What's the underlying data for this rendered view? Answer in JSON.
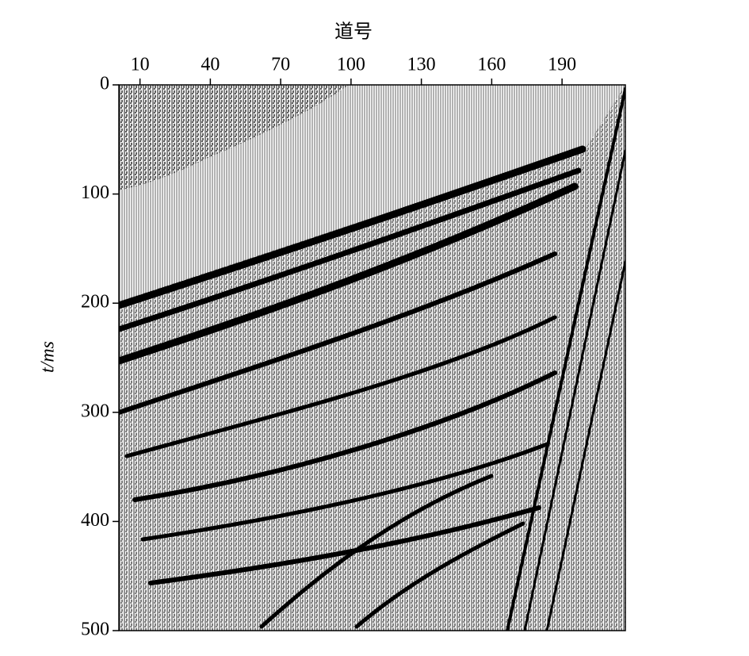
{
  "chart_data": {
    "type": "seismic",
    "x_label": "道号",
    "y_label": "t/ms",
    "xlim": [
      1,
      217
    ],
    "xticks": [
      10,
      40,
      70,
      100,
      130,
      160,
      190
    ],
    "ylim": [
      0,
      500
    ],
    "yticks": [
      0,
      100,
      200,
      300,
      400,
      500
    ]
  }
}
